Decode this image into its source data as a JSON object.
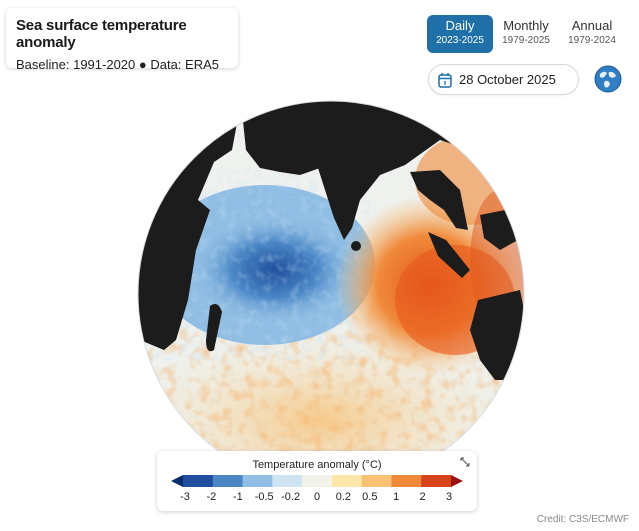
{
  "header": {
    "title": "Sea surface temperature anomaly",
    "subtitle": "Baseline: 1991-2020 ● Data: ERA5"
  },
  "tabs": [
    {
      "label": "Daily",
      "range": "2023-2025",
      "active": true
    },
    {
      "label": "Monthly",
      "range": "1979-2025",
      "active": false
    },
    {
      "label": "Annual",
      "range": "1979-2024",
      "active": false
    }
  ],
  "date_picker": {
    "value": "28 October 2025",
    "icon": "calendar-icon"
  },
  "globe_button": {
    "icon": "globe-icon"
  },
  "map": {
    "projection": "orthographic",
    "centered_on": "Indian Ocean",
    "land_color": "#1c1c1c",
    "cool_color": "#6aa6da",
    "warm_color": "#ee6a1d"
  },
  "legend": {
    "title": "Temperature anomaly (°C)",
    "ticks": [
      "-3",
      "-2",
      "-1",
      "-0.5",
      "-0.2",
      "0",
      "0.2",
      "0.5",
      "1",
      "2",
      "3"
    ],
    "colors": [
      "#0a2c6e",
      "#1f4f9c",
      "#4a86c6",
      "#8fbde3",
      "#cfe4f2",
      "#f2f2ea",
      "#fbe7a8",
      "#f9c174",
      "#f08a3a",
      "#d9431a",
      "#9b1010"
    ],
    "expand_icon": "expand-icon"
  },
  "credit": "Credit: C3S/ECMWF"
}
